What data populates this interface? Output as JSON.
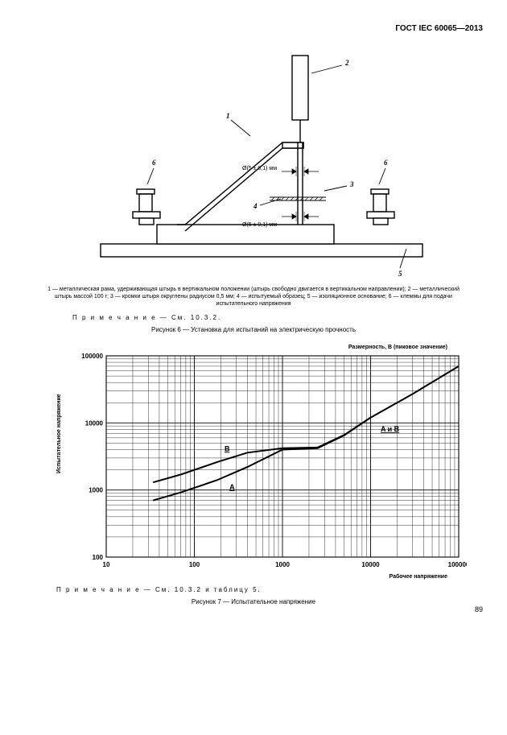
{
  "header": "ГОСТ IEC 60065—2013",
  "figure6": {
    "callouts": {
      "c1": "1",
      "c2": "2",
      "c3": "3",
      "c4": "4",
      "c5": "5",
      "c6": "6"
    },
    "dim_upper": "Ø(5 ± 0,1) мм",
    "dim_lower": "Ø(5 ± 0,1) мм",
    "legend": "1 — металлическая рама, удерживающая штырь в вертикальном положении (штырь свободно двигается в вертикальном направлении); 2 — металлический штырь массой 100 г; 3 — кромки штыря округлены радиусом 0,5 мм; 4 — испытуемый образец; 5 — изоляционное основание; 6 — клеммы для подачи испытательного напряжения",
    "note": "П р и м е ч а н и е — См. 10.3.2.",
    "caption": "Рисунок 6 — Установка для испытаний на электрическую прочность"
  },
  "figure7": {
    "chart_type": "line-loglog",
    "chart_top_right": "Размерность, В (пиковое значение)",
    "y_label": "Испытательное напряжение",
    "x_label": "Рабочее напряжение",
    "x_range": [
      10,
      100000
    ],
    "y_range": [
      100,
      100000
    ],
    "x_ticks": [
      "10",
      "100",
      "1000",
      "10000",
      "100000"
    ],
    "y_ticks": [
      "100",
      "1000",
      "10000",
      "100000"
    ],
    "series_labels": {
      "A": "A",
      "B": "B",
      "AB": "A и B"
    },
    "series_A": [
      [
        34,
        700
      ],
      [
        70,
        920
      ],
      [
        180,
        1400
      ],
      [
        400,
        2200
      ],
      [
        1000,
        4000
      ],
      [
        2500,
        4200
      ],
      [
        5000,
        6500
      ],
      [
        10000,
        12000
      ]
    ],
    "series_B": [
      [
        34,
        1300
      ],
      [
        70,
        1700
      ],
      [
        180,
        2600
      ],
      [
        400,
        3600
      ],
      [
        1000,
        4200
      ],
      [
        2500,
        4300
      ],
      [
        5000,
        6600
      ],
      [
        10000,
        12000
      ]
    ],
    "series_AB_tail": [
      [
        10000,
        12000
      ],
      [
        30000,
        27000
      ],
      [
        100000,
        70000
      ]
    ],
    "colors": {
      "line": "#000000",
      "grid_major": "#000000",
      "grid_minor": "#000000",
      "background": "#ffffff"
    },
    "line_width": 2,
    "grid_minor_width": 0.4,
    "grid_major_width": 0.9,
    "note": "П р и м е ч а н и е — См. 10.3.2 и таблицу 5.",
    "caption": "Рисунок 7 — Испытательное напряжение"
  },
  "page_number": "89"
}
